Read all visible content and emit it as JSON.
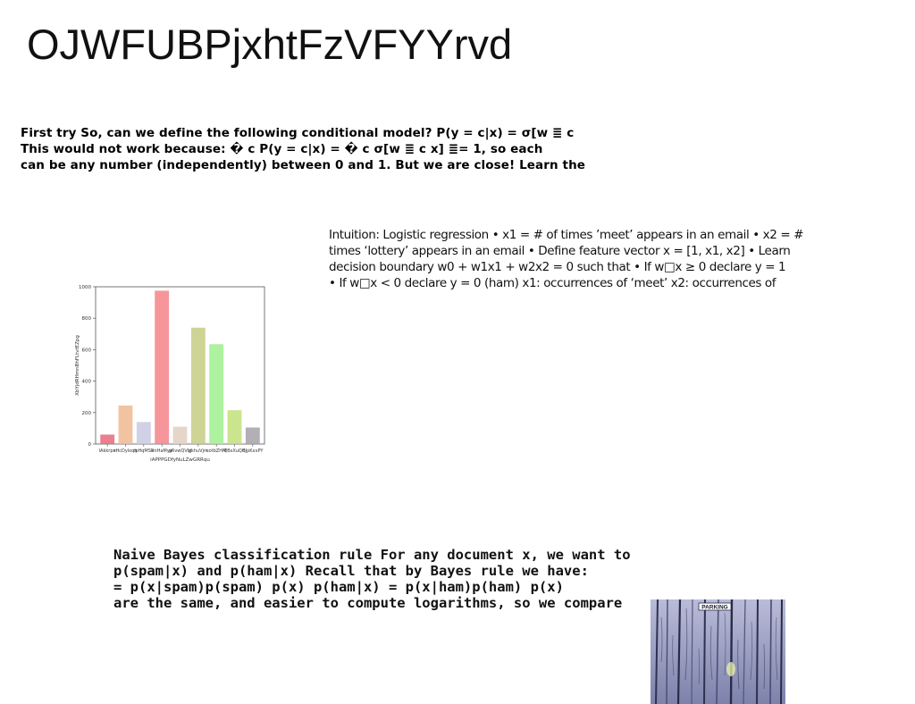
{
  "title": "OJWFUBPjxhtFzVFYYrvd",
  "block1": {
    "lines": [
      "First try So, can we define the following conditional model? P(y = c|x) = σ[w ≣ c",
      "This would not work because: � c P(y = c|x) = � c σ[w ≣ c x] ≣= 1, so each",
      "can be any number (independently) between 0 and 1. But we are close! Learn the"
    ]
  },
  "block2": {
    "lines": [
      "Intuition: Logistic regression • x1 = # of times ’meet’ appears in an email • x2 = #",
      "times ‘lottery’ appears in an email • Define feature vector x = [1, x1, x2] • Learn",
      "decision boundary w0 + w1x1 + w2x2 = 0 such that • If w□x ≥ 0 declare y = 1",
      "• If w□x < 0 declare y = 0 (ham) x1: occurrences of ‘meet’ x2: occurrences of"
    ]
  },
  "block3": {
    "lines": [
      "Naive Bayes classification rule For any document x, we want to",
      "p(spam|x) and p(ham|x) Recall that by Bayes rule we have:",
      "= p(x|spam)p(spam) p(x) p(ham|x) = p(x|ham)p(ham) p(x)",
      "are the same, and easier to compute logarithms, so we compare"
    ]
  },
  "chart_data": {
    "type": "bar",
    "categories": [
      "lAkkrpn",
      "rHcDyloqh",
      "rpHqMSR",
      "xnHaMyv",
      "gRvwQVbj",
      "ykhuVjm",
      "cotbZHM",
      "QBsXuQH",
      "BJpKxxPY"
    ],
    "values": [
      60,
      245,
      140,
      975,
      110,
      740,
      635,
      215,
      105
    ],
    "colors": [
      "#e8687c",
      "#f0b890",
      "#c9c9e2",
      "#f4848a",
      "#e2cfc0",
      "#c6cc84",
      "#9ef08e",
      "#c2e07a",
      "#a7a0aa"
    ],
    "xlabel": "iAPPPGDfyNuLZwGRRqu",
    "ylabel": "XbYjdRHmnBhFLtvtEZpg",
    "ylim": [
      0,
      1000
    ],
    "yticks": [
      0,
      200,
      400,
      600,
      800,
      1000
    ],
    "grid": false,
    "legend": "none"
  },
  "photo": {
    "sign_text": "PARKING",
    "colors": {
      "wood": "#8a8fb8",
      "plank_dark": "#3b3d5a",
      "sky": "#c9cbe4"
    }
  }
}
